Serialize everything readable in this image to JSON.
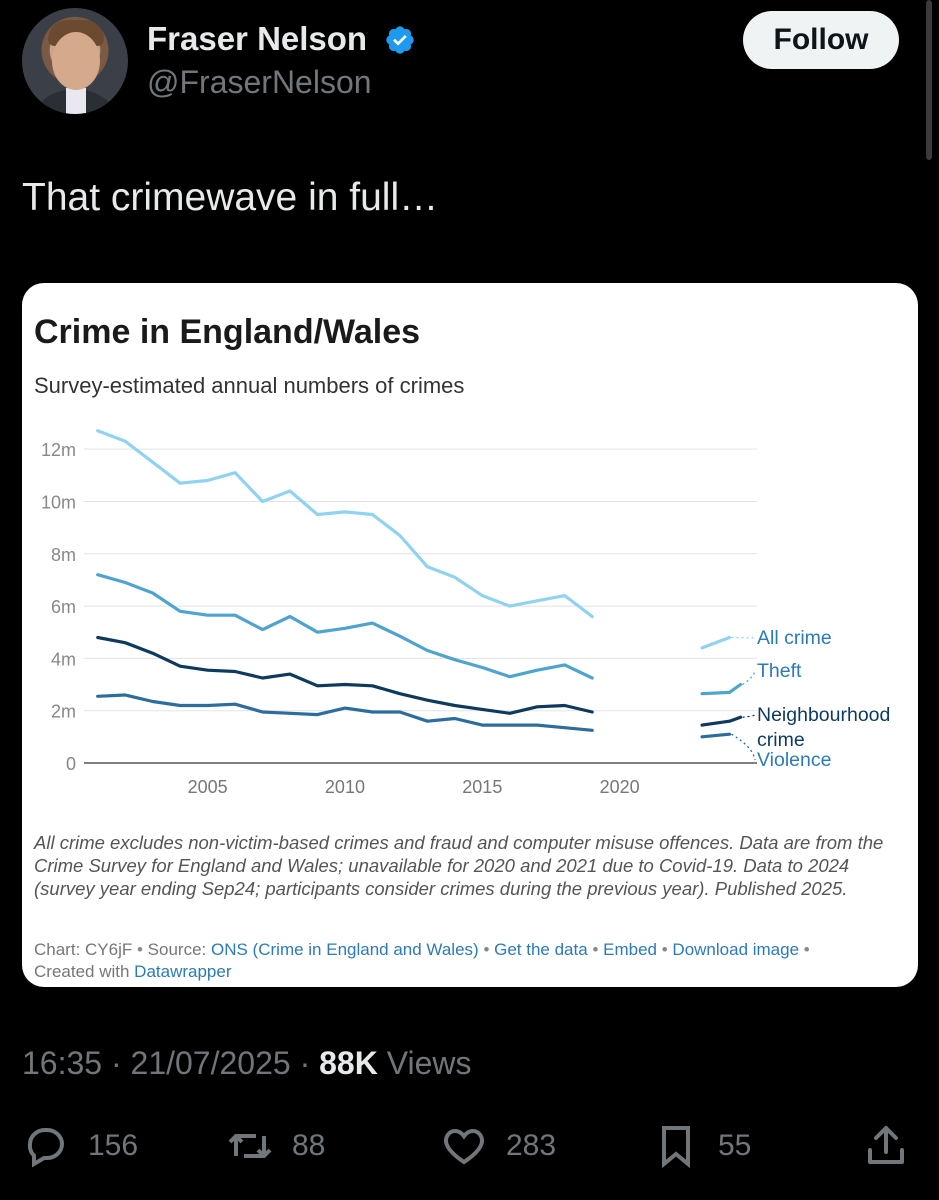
{
  "user": {
    "name": "Fraser Nelson",
    "handle": "@FraserNelson",
    "follow_label": "Follow"
  },
  "tweet": {
    "text": "That crimewave in full…",
    "time": "16:35",
    "date": "21/07/2025",
    "views_count": "88K",
    "views_label": "Views",
    "separator": "·"
  },
  "actions": {
    "replies": "156",
    "reposts": "88",
    "likes": "283",
    "bookmarks": "55"
  },
  "icons": [
    "reply-icon",
    "repost-icon",
    "like-icon",
    "bookmark-icon",
    "share-icon",
    "verified-badge-icon"
  ],
  "colors": {
    "background": "#000000",
    "follow_bg": "#eff3f4",
    "verified": "#1d9bf0",
    "all_crime": "#8fd3f0",
    "theft": "#4fa3cf",
    "neighbourhood_crime": "#0e3a5e",
    "violence": "#2d6d9e"
  },
  "chart_data": {
    "type": "line",
    "title": "Crime in England/Wales",
    "subtitle": "Survey-estimated annual numbers of crimes",
    "xlabel": "",
    "ylabel": "",
    "xlim": [
      2000.5,
      2025
    ],
    "ylim": [
      0,
      13
    ],
    "x_ticks": [
      2005,
      2010,
      2015,
      2020
    ],
    "x_tick_labels": [
      "2005",
      "2010",
      "2015",
      "2020"
    ],
    "y_ticks": [
      0,
      2,
      4,
      6,
      8,
      10,
      12
    ],
    "y_tick_labels": [
      "0",
      "2m",
      "4m",
      "6m",
      "8m",
      "10m",
      "12m"
    ],
    "grid": "horizontal",
    "legend": "right (direct labels)",
    "series": [
      {
        "name": "All crime",
        "color": "#8fd3f0",
        "segments": [
          {
            "x": [
              2001,
              2002,
              2003,
              2004,
              2005,
              2006,
              2007,
              2008,
              2009,
              2010,
              2011,
              2012,
              2013,
              2014,
              2015,
              2016,
              2017,
              2018,
              2019
            ],
            "y": [
              12.7,
              12.3,
              11.5,
              10.7,
              10.8,
              11.1,
              10.0,
              10.4,
              9.5,
              9.6,
              9.5,
              8.7,
              7.5,
              7.1,
              6.4,
              6.0,
              6.2,
              6.4,
              5.6
            ]
          },
          {
            "x": [
              2023,
              2024
            ],
            "y": [
              4.4,
              4.8
            ]
          }
        ]
      },
      {
        "name": "Theft",
        "color": "#4fa3cf",
        "segments": [
          {
            "x": [
              2001,
              2002,
              2003,
              2004,
              2005,
              2006,
              2007,
              2008,
              2009,
              2010,
              2011,
              2012,
              2013,
              2014,
              2015,
              2016,
              2017,
              2018,
              2019
            ],
            "y": [
              7.2,
              6.9,
              6.5,
              5.8,
              5.65,
              5.65,
              5.1,
              5.6,
              5.0,
              5.15,
              5.35,
              4.85,
              4.3,
              3.95,
              3.65,
              3.3,
              3.55,
              3.75,
              3.25
            ]
          },
          {
            "x": [
              2023,
              2024,
              2024.4
            ],
            "y": [
              2.65,
              2.7,
              3.0
            ]
          }
        ]
      },
      {
        "name": "Neighbourhood crime",
        "color": "#0e3a5e",
        "segments": [
          {
            "x": [
              2001,
              2002,
              2003,
              2004,
              2005,
              2006,
              2007,
              2008,
              2009,
              2010,
              2011,
              2012,
              2013,
              2014,
              2015,
              2016,
              2017,
              2018,
              2019
            ],
            "y": [
              4.8,
              4.6,
              4.2,
              3.7,
              3.55,
              3.5,
              3.25,
              3.4,
              2.95,
              3.0,
              2.95,
              2.65,
              2.4,
              2.2,
              2.05,
              1.9,
              2.15,
              2.2,
              1.95
            ]
          },
          {
            "x": [
              2023,
              2024,
              2024.4
            ],
            "y": [
              1.45,
              1.6,
              1.75
            ]
          }
        ]
      },
      {
        "name": "Violence",
        "color": "#2d6d9e",
        "segments": [
          {
            "x": [
              2001,
              2002,
              2003,
              2004,
              2005,
              2006,
              2007,
              2008,
              2009,
              2010,
              2011,
              2012,
              2013,
              2014,
              2015,
              2016,
              2017,
              2018,
              2019
            ],
            "y": [
              2.55,
              2.6,
              2.35,
              2.2,
              2.2,
              2.25,
              1.95,
              1.9,
              1.85,
              2.1,
              1.95,
              1.95,
              1.6,
              1.7,
              1.45,
              1.45,
              1.45,
              1.35,
              1.25
            ]
          },
          {
            "x": [
              2023,
              2024
            ],
            "y": [
              1.0,
              1.1
            ]
          }
        ]
      }
    ],
    "label_lines": [
      "All crime",
      "Theft",
      "Neighbourhood",
      "crime",
      "Violence"
    ],
    "notes": "All crime excludes non-victim-based crimes and fraud and computer misuse offences. Data are from the Crime Survey for England and Wales; unavailable for 2020 and 2021 due to Covid-19. Data to 2024 (survey year ending Sep24; participants consider crimes during the previous year). Published 2025.",
    "credits": {
      "chart_id": "Chart: CY6jF",
      "source_prefix": "Source:",
      "source": "ONS (Crime in England and Wales)",
      "get_data": "Get the data",
      "embed": "Embed",
      "download": "Download image",
      "created_with": "Created with",
      "tool": "Datawrapper",
      "dot": "•"
    }
  }
}
